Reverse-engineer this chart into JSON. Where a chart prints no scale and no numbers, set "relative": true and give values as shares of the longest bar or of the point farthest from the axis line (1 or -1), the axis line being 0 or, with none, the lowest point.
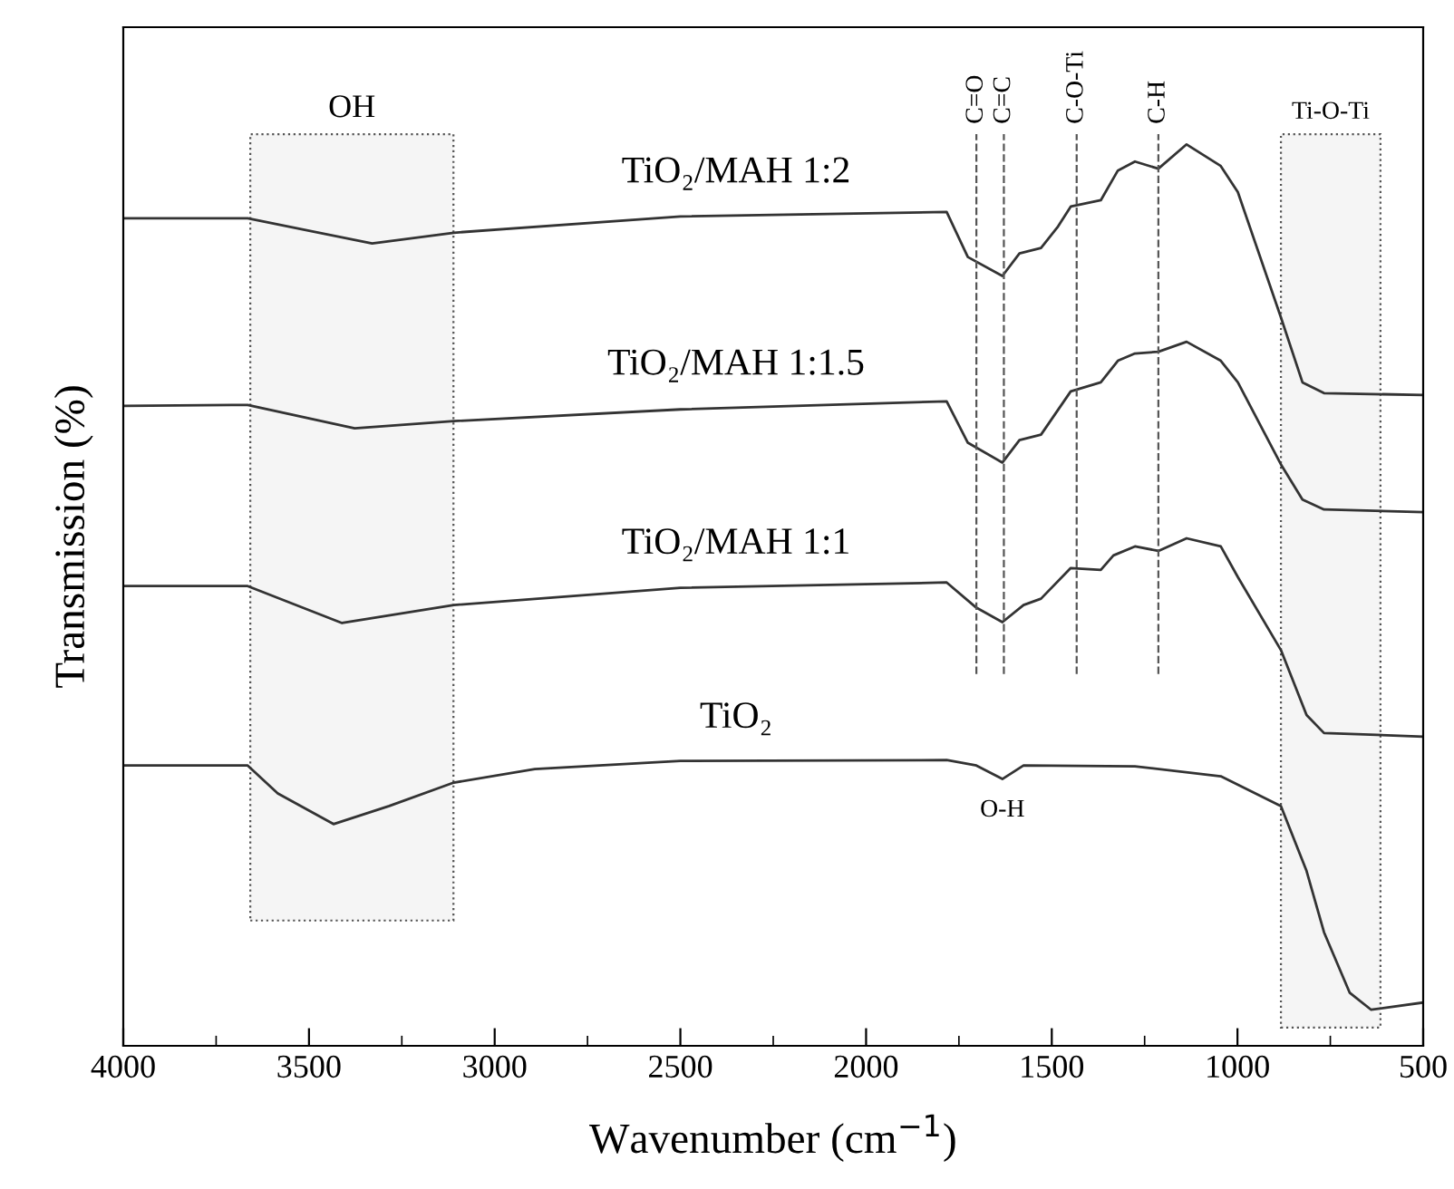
{
  "chart_data": {
    "type": "line",
    "relative": true,
    "xlabel": "Wavenumber (cm$^{−1}$)",
    "ylabel": "Transmission (%)",
    "xlim": [
      4000,
      500
    ],
    "xticks": [
      4000,
      {
        "value": 3750,
        "label": null
      },
      3500,
      {
        "value": 3250,
        "label": null
      },
      3000,
      {
        "value": 2750,
        "label": null
      },
      2500,
      {
        "value": 2250,
        "label": null
      },
      2000,
      {
        "value": 1750,
        "label": null
      },
      1500,
      {
        "value": 1250,
        "label": null
      },
      1000,
      {
        "value": 750,
        "label": null
      },
      500
    ],
    "grid": false,
    "marker": "none",
    "line_style": "solid",
    "series": [
      {
        "name": "TiO₂/MAH 1:2",
        "color": "#333333",
        "x": [
          4000,
          3665,
          3330,
          3110,
          2500,
          1783,
          1726,
          1633,
          1587,
          1529,
          1483,
          1449,
          1368,
          1322,
          1276,
          1213,
          1137,
          1045,
          999,
          883,
          825,
          767,
          500
        ],
        "values": [
          0.918,
          0.918,
          0.89,
          0.902,
          0.92,
          0.925,
          0.875,
          0.854,
          0.879,
          0.885,
          0.909,
          0.931,
          0.938,
          0.971,
          0.981,
          0.973,
          1.0,
          0.976,
          0.947,
          0.808,
          0.736,
          0.724,
          0.722
        ]
      },
      {
        "name": "TiO₂/MAH 1:1.5",
        "color": "#333333",
        "x": [
          4000,
          3665,
          3377,
          3110,
          2500,
          1783,
          1726,
          1633,
          1587,
          1529,
          1449,
          1368,
          1322,
          1276,
          1213,
          1137,
          1045,
          999,
          883,
          825,
          767,
          500
        ],
        "values": [
          0.71,
          0.711,
          0.685,
          0.693,
          0.706,
          0.715,
          0.669,
          0.647,
          0.672,
          0.678,
          0.726,
          0.736,
          0.76,
          0.768,
          0.77,
          0.781,
          0.76,
          0.736,
          0.645,
          0.606,
          0.595,
          0.592
        ]
      },
      {
        "name": "TiO₂/MAH 1:1",
        "color": "#333333",
        "x": [
          4000,
          3665,
          3411,
          3110,
          2500,
          1783,
          1703,
          1633,
          1576,
          1529,
          1449,
          1368,
          1334,
          1276,
          1213,
          1137,
          1045,
          999,
          883,
          814,
          767,
          500
        ],
        "values": [
          0.51,
          0.51,
          0.469,
          0.489,
          0.508,
          0.514,
          0.486,
          0.47,
          0.489,
          0.496,
          0.53,
          0.528,
          0.544,
          0.554,
          0.549,
          0.563,
          0.554,
          0.52,
          0.439,
          0.367,
          0.347,
          0.343
        ]
      },
      {
        "name": "TiO₂",
        "color": "#333333",
        "x": [
          4000,
          3665,
          3584,
          3434,
          3284,
          3110,
          2892,
          2500,
          1783,
          1703,
          1633,
          1576,
          1276,
          1045,
          883,
          814,
          767,
          698,
          640,
          500
        ],
        "values": [
          0.311,
          0.311,
          0.28,
          0.246,
          0.266,
          0.292,
          0.307,
          0.316,
          0.317,
          0.311,
          0.296,
          0.311,
          0.31,
          0.299,
          0.266,
          0.194,
          0.126,
          0.059,
          0.04,
          0.048
        ]
      }
    ],
    "ref_lines": [
      {
        "axis": "x",
        "value": 1703,
        "label": "C=O",
        "line_style": "dashed",
        "color": "#555555"
      },
      {
        "axis": "x",
        "value": 1629,
        "label": "C=C",
        "line_style": "dashed",
        "color": "#555555"
      },
      {
        "axis": "x",
        "value": 1433,
        "label": "C-O-Ti",
        "line_style": "dashed",
        "color": "#555555"
      },
      {
        "axis": "x",
        "value": 1213,
        "label": "C-H",
        "line_style": "dashed",
        "color": "#555555"
      }
    ],
    "bands": [
      {
        "axis": "x",
        "from": 3658,
        "to": 3111,
        "label": "OH",
        "color": "#555555"
      },
      {
        "axis": "x",
        "from": 883,
        "to": 615,
        "label": "Ti-O-Ti",
        "color": "#555555"
      }
    ],
    "annotations": [
      {
        "text": "O-H",
        "x": 1633,
        "y": 0.296
      }
    ]
  }
}
